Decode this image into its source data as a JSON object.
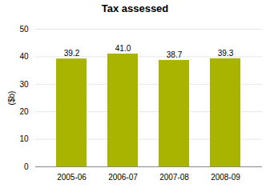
{
  "chart_data": {
    "type": "bar",
    "title": "Tax assessed",
    "ylabel": "($b)",
    "categories": [
      "2005-06",
      "2006-07",
      "2007-08",
      "2008-09"
    ],
    "values": [
      39.2,
      41.0,
      38.7,
      39.3
    ],
    "value_labels": [
      "39.2",
      "41.0",
      "38.7",
      "39.3"
    ],
    "data_labels": true,
    "color": "#a8b400",
    "ylim": [
      0,
      50
    ],
    "yticks": [
      0,
      10,
      20,
      30,
      40,
      50
    ],
    "grid": true
  }
}
